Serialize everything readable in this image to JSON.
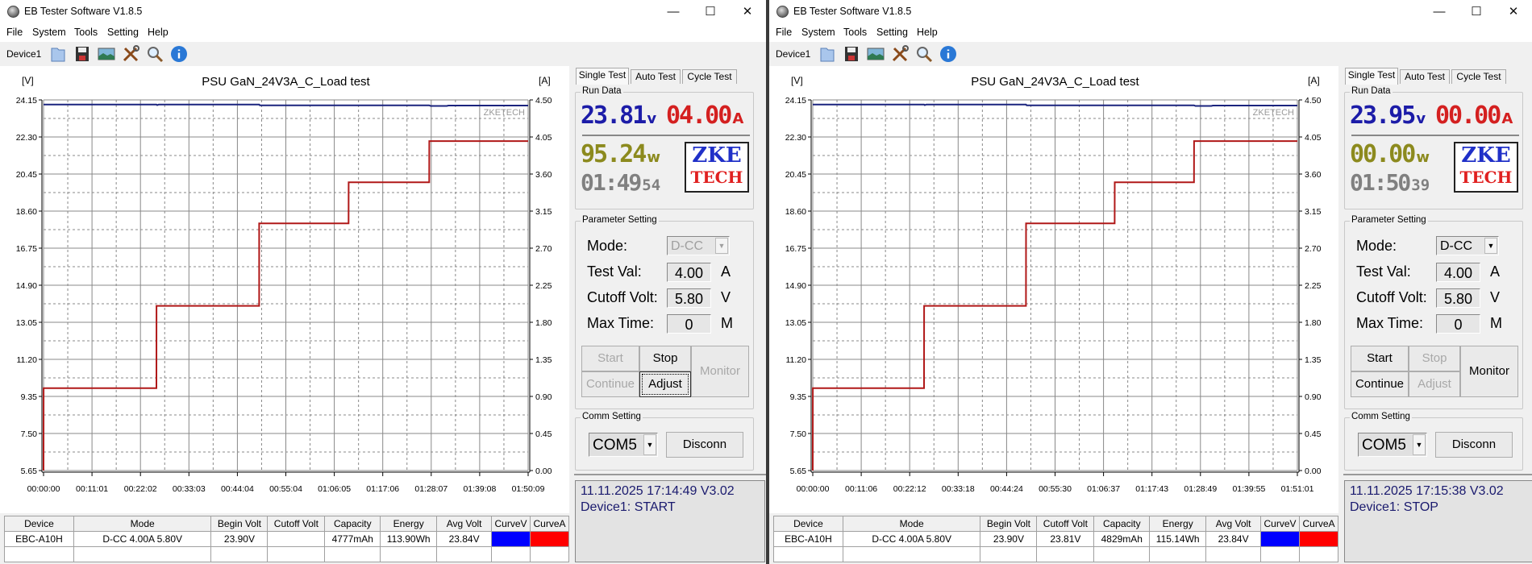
{
  "windows": [
    {
      "title": "EB Tester Software V1.8.5",
      "menu": [
        "File",
        "System",
        "Tools",
        "Setting",
        "Help"
      ],
      "toolbar": {
        "device": "Device1",
        "icons": [
          "folder-icon",
          "save-icon",
          "chart-image-icon",
          "tools-icon",
          "search-icon",
          "info-icon"
        ]
      },
      "tabs": [
        "Single Test",
        "Auto Test",
        "Cycle Test"
      ],
      "run_data": {
        "group": "Run Data",
        "voltage": "23.81",
        "voltage_unit": "v",
        "current": "04.00",
        "current_unit": "A",
        "power": "95.24",
        "power_unit": "w",
        "time": "01:49",
        "seconds": "54",
        "logo_top": "ZKE",
        "logo_bottom": "TECH"
      },
      "params": {
        "group": "Parameter Setting",
        "mode_label": "Mode:",
        "mode_value": "D-CC",
        "mode_enabled": false,
        "test_val_label": "Test Val:",
        "test_val": "4.00",
        "test_val_unit": "A",
        "cutoff_label": "Cutoff Volt:",
        "cutoff": "5.80",
        "cutoff_unit": "V",
        "max_time_label": "Max Time:",
        "max_time": "0",
        "max_time_unit": "M"
      },
      "buttons": {
        "start": {
          "label": "Start",
          "enabled": false
        },
        "stop": {
          "label": "Stop",
          "enabled": true
        },
        "continue": {
          "label": "Continue",
          "enabled": false
        },
        "adjust": {
          "label": "Adjust",
          "enabled": true,
          "focused": true
        },
        "monitor": {
          "label": "Monitor",
          "enabled": false
        }
      },
      "comm": {
        "group": "Comm Setting",
        "port": "COM5",
        "disconnect": "Disconn"
      },
      "status": {
        "line1": "11.11.2025 17:14:49  V3.02",
        "line2": "Device1: START"
      },
      "table": {
        "headers": [
          "Device",
          "Mode",
          "Begin Volt",
          "Cutoff Volt",
          "Capacity",
          "Energy",
          "Avg Volt",
          "CurveV",
          "CurveA"
        ],
        "rows": [
          [
            "EBC-A10H",
            "D-CC  4.00A  5.80V",
            "23.90V",
            "",
            "4777mAh",
            "113.90Wh",
            "23.84V",
            "",
            ""
          ],
          [
            "",
            "",
            "",
            "",
            "",
            "",
            "",
            "",
            ""
          ]
        ],
        "curve_colors": [
          "#0000ff",
          "#ff0000"
        ]
      }
    },
    {
      "title": "EB Tester Software V1.8.5",
      "menu": [
        "File",
        "System",
        "Tools",
        "Setting",
        "Help"
      ],
      "toolbar": {
        "device": "Device1",
        "icons": [
          "folder-icon",
          "save-icon",
          "chart-image-icon",
          "tools-icon",
          "search-icon",
          "info-icon"
        ]
      },
      "tabs": [
        "Single Test",
        "Auto Test",
        "Cycle Test"
      ],
      "run_data": {
        "group": "Run Data",
        "voltage": "23.95",
        "voltage_unit": "v",
        "current": "00.00",
        "current_unit": "A",
        "power": "00.00",
        "power_unit": "w",
        "time": "01:50",
        "seconds": "39",
        "logo_top": "ZKE",
        "logo_bottom": "TECH"
      },
      "params": {
        "group": "Parameter Setting",
        "mode_label": "Mode:",
        "mode_value": "D-CC",
        "mode_enabled": true,
        "test_val_label": "Test Val:",
        "test_val": "4.00",
        "test_val_unit": "A",
        "cutoff_label": "Cutoff Volt:",
        "cutoff": "5.80",
        "cutoff_unit": "V",
        "max_time_label": "Max Time:",
        "max_time": "0",
        "max_time_unit": "M"
      },
      "buttons": {
        "start": {
          "label": "Start",
          "enabled": true
        },
        "stop": {
          "label": "Stop",
          "enabled": false
        },
        "continue": {
          "label": "Continue",
          "enabled": true
        },
        "adjust": {
          "label": "Adjust",
          "enabled": false,
          "focused": false
        },
        "monitor": {
          "label": "Monitor",
          "enabled": true
        }
      },
      "comm": {
        "group": "Comm Setting",
        "port": "COM5",
        "disconnect": "Disconn"
      },
      "status": {
        "line1": "11.11.2025 17:15:38  V3.02",
        "line2": "Device1: STOP"
      },
      "table": {
        "headers": [
          "Device",
          "Mode",
          "Begin Volt",
          "Cutoff Volt",
          "Capacity",
          "Energy",
          "Avg Volt",
          "CurveV",
          "CurveA"
        ],
        "rows": [
          [
            "EBC-A10H",
            "D-CC  4.00A  5.80V",
            "23.90V",
            "23.81V",
            "4829mAh",
            "115.14Wh",
            "23.84V",
            "",
            ""
          ],
          [
            "",
            "",
            "",
            "",
            "",
            "",
            "",
            "",
            ""
          ]
        ],
        "curve_colors": [
          "#0000ff",
          "#ff0000"
        ]
      }
    }
  ],
  "chart_data": [
    {
      "type": "line",
      "title": "PSU GaN_24V3A_C_Load test",
      "y_left_label": "[V]",
      "y_right_label": "[A]",
      "watermark": "ZKETECH",
      "grid": true,
      "xlim": [
        "00:00:00",
        "01:50:09"
      ],
      "ylim_left": [
        5.65,
        24.15
      ],
      "ylim_right": [
        0,
        4.5
      ],
      "x_tick_labels": [
        "00:00:00",
        "00:11:01",
        "00:22:02",
        "00:33:03",
        "00:44:04",
        "00:55:04",
        "01:06:05",
        "01:17:06",
        "01:28:07",
        "01:39:08",
        "01:50:09"
      ],
      "y_left_ticks": [
        "24.15",
        "22.30",
        "20.45",
        "18.60",
        "16.75",
        "14.90",
        "13.05",
        "11.20",
        "9.35",
        "7.50",
        "5.65"
      ],
      "y_right_ticks": [
        "4.50",
        "4.05",
        "3.60",
        "3.15",
        "2.70",
        "2.25",
        "1.80",
        "1.35",
        "0.90",
        "0.45",
        "0.00"
      ],
      "series": [
        {
          "axis": "left",
          "color": "#1a237e",
          "points": [
            [
              "00:00:00",
              23.92
            ],
            [
              "00:25:40",
              23.92
            ],
            [
              "00:25:50",
              23.89
            ],
            [
              "00:26:10",
              23.92
            ],
            [
              "00:49:00",
              23.92
            ],
            [
              "00:49:10",
              23.88
            ],
            [
              "01:27:40",
              23.88
            ],
            [
              "01:28:00",
              23.85
            ],
            [
              "01:31:40",
              23.85
            ],
            [
              "01:32:00",
              23.87
            ],
            [
              "01:50:09",
              23.87
            ]
          ]
        },
        {
          "axis": "right",
          "color": "#b01818",
          "points": [
            [
              "00:00:00",
              0
            ],
            [
              "00:00:01",
              1.0
            ],
            [
              "00:25:40",
              1.0
            ],
            [
              "00:25:41",
              2.0
            ],
            [
              "00:49:00",
              2.0
            ],
            [
              "00:49:01",
              3.0
            ],
            [
              "01:09:20",
              3.0
            ],
            [
              "01:09:21",
              3.5
            ],
            [
              "01:27:40",
              3.5
            ],
            [
              "01:27:41",
              4.0
            ],
            [
              "01:50:09",
              4.0
            ]
          ]
        }
      ]
    },
    {
      "type": "line",
      "title": "PSU GaN_24V3A_C_Load test",
      "y_left_label": "[V]",
      "y_right_label": "[A]",
      "watermark": "ZKETECH",
      "grid": true,
      "xlim": [
        "00:00:00",
        "01:51:01"
      ],
      "ylim_left": [
        5.65,
        24.15
      ],
      "ylim_right": [
        0,
        4.5
      ],
      "x_tick_labels": [
        "00:00:00",
        "00:11:06",
        "00:22:12",
        "00:33:18",
        "00:44:24",
        "00:55:30",
        "01:06:37",
        "01:17:43",
        "01:28:49",
        "01:39:55",
        "01:51:01"
      ],
      "y_left_ticks": [
        "24.15",
        "22.30",
        "20.45",
        "18.60",
        "16.75",
        "14.90",
        "13.05",
        "11.20",
        "9.35",
        "7.50",
        "5.65"
      ],
      "y_right_ticks": [
        "4.50",
        "4.05",
        "3.60",
        "3.15",
        "2.70",
        "2.25",
        "1.80",
        "1.35",
        "0.90",
        "0.45",
        "0.00"
      ],
      "series": [
        {
          "axis": "left",
          "color": "#1a237e",
          "points": [
            [
              "00:00:00",
              23.92
            ],
            [
              "00:25:30",
              23.92
            ],
            [
              "00:25:40",
              23.89
            ],
            [
              "00:26:00",
              23.92
            ],
            [
              "00:48:50",
              23.92
            ],
            [
              "00:49:00",
              23.88
            ],
            [
              "01:27:20",
              23.88
            ],
            [
              "01:27:40",
              23.85
            ],
            [
              "01:31:20",
              23.85
            ],
            [
              "01:31:40",
              23.87
            ],
            [
              "01:51:01",
              23.87
            ]
          ]
        },
        {
          "axis": "right",
          "color": "#b01818",
          "points": [
            [
              "00:00:00",
              0
            ],
            [
              "00:00:01",
              1.0
            ],
            [
              "00:25:30",
              1.0
            ],
            [
              "00:25:31",
              2.0
            ],
            [
              "00:48:50",
              2.0
            ],
            [
              "00:48:51",
              3.0
            ],
            [
              "01:09:10",
              3.0
            ],
            [
              "01:09:11",
              3.5
            ],
            [
              "01:27:20",
              3.5
            ],
            [
              "01:27:21",
              4.0
            ],
            [
              "01:51:01",
              4.0
            ]
          ]
        }
      ]
    }
  ]
}
